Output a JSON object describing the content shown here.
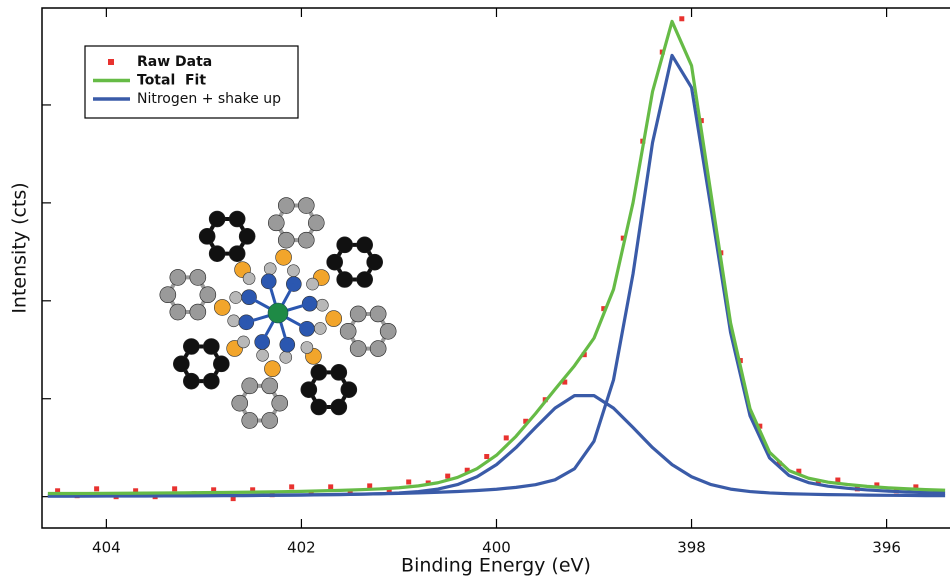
{
  "chart_data": {
    "type": "line",
    "x_label": "Binding Energy (eV)",
    "y_label": "Intensity (cts)",
    "xlim": [
      404.66,
      395.35
    ],
    "xticks": [
      404,
      402,
      400,
      398,
      396
    ],
    "ylim": [
      -0.32,
      4.99
    ],
    "yticks": [
      0,
      1,
      2,
      3,
      4
    ],
    "legend": "upper left",
    "x": [
      404.6,
      404.4,
      404.2,
      404.0,
      403.8,
      403.6,
      403.4,
      403.2,
      403.0,
      402.8,
      402.6,
      402.4,
      402.2,
      402.0,
      401.8,
      401.6,
      401.4,
      401.2,
      401.0,
      400.8,
      400.6,
      400.4,
      400.2,
      400.0,
      399.8,
      399.6,
      399.4,
      399.2,
      399.0,
      398.8,
      398.6,
      398.4,
      398.2,
      398.0,
      397.8,
      397.6,
      397.4,
      397.2,
      397.0,
      396.8,
      396.6,
      396.4,
      396.2,
      396.0,
      395.8,
      395.6,
      395.4
    ],
    "series": [
      {
        "name": "Raw Data",
        "type": "scatter",
        "color": "#e8322f",
        "x": [
          404.5,
          404.3,
          404.1,
          403.9,
          403.7,
          403.5,
          403.3,
          403.1,
          402.9,
          402.7,
          402.5,
          402.3,
          402.1,
          401.9,
          401.7,
          401.5,
          401.3,
          401.1,
          400.9,
          400.7,
          400.5,
          400.3,
          400.1,
          399.9,
          399.7,
          399.5,
          399.3,
          399.1,
          398.9,
          398.7,
          398.5,
          398.3,
          398.1,
          397.9,
          397.7,
          397.5,
          397.3,
          397.1,
          396.9,
          396.7,
          396.5,
          396.3,
          396.1,
          395.9,
          395.7,
          395.5
        ],
        "values": [
          0.06,
          0.01,
          0.08,
          0.0,
          0.06,
          0.0,
          0.08,
          0.03,
          0.07,
          -0.02,
          0.07,
          0.02,
          0.1,
          0.04,
          0.1,
          0.04,
          0.11,
          0.07,
          0.15,
          0.14,
          0.21,
          0.27,
          0.41,
          0.6,
          0.77,
          0.99,
          1.17,
          1.45,
          1.92,
          2.64,
          3.63,
          4.54,
          4.88,
          3.84,
          2.49,
          1.39,
          0.72,
          0.34,
          0.26,
          0.15,
          0.17,
          0.08,
          0.12,
          0.06,
          0.1,
          0.04
        ]
      },
      {
        "name": "Total  Fit",
        "type": "line",
        "color": "#66bb46",
        "values": [
          0.032,
          0.032,
          0.033,
          0.034,
          0.035,
          0.036,
          0.038,
          0.039,
          0.041,
          0.043,
          0.045,
          0.048,
          0.051,
          0.054,
          0.059,
          0.064,
          0.071,
          0.079,
          0.091,
          0.11,
          0.142,
          0.196,
          0.286,
          0.423,
          0.616,
          0.848,
          1.096,
          1.337,
          1.619,
          2.117,
          3.001,
          4.136,
          4.853,
          4.401,
          3.087,
          1.775,
          0.897,
          0.453,
          0.266,
          0.188,
          0.148,
          0.124,
          0.105,
          0.091,
          0.081,
          0.072,
          0.066
        ]
      },
      {
        "name": "Nitrogen + shake up",
        "type": "line",
        "color": "#3a5ba8",
        "values": [
          0.007,
          0.007,
          0.008,
          0.008,
          0.009,
          0.009,
          0.01,
          0.011,
          0.012,
          0.013,
          0.014,
          0.015,
          0.017,
          0.018,
          0.02,
          0.023,
          0.026,
          0.029,
          0.033,
          0.038,
          0.045,
          0.053,
          0.063,
          0.076,
          0.095,
          0.122,
          0.172,
          0.285,
          0.567,
          1.193,
          2.275,
          3.615,
          4.506,
          4.178,
          2.944,
          1.678,
          0.825,
          0.395,
          0.216,
          0.143,
          0.107,
          0.085,
          0.069,
          0.057,
          0.048,
          0.041,
          0.036
        ]
      },
      {
        "type": "line",
        "color": "#3a5ba8",
        "values": [
          0.005,
          0.005,
          0.005,
          0.006,
          0.006,
          0.007,
          0.008,
          0.008,
          0.009,
          0.01,
          0.011,
          0.013,
          0.014,
          0.016,
          0.019,
          0.021,
          0.025,
          0.03,
          0.038,
          0.052,
          0.077,
          0.123,
          0.203,
          0.327,
          0.501,
          0.706,
          0.904,
          1.032,
          1.032,
          0.904,
          0.706,
          0.501,
          0.327,
          0.203,
          0.123,
          0.077,
          0.052,
          0.038,
          0.03,
          0.025,
          0.021,
          0.019,
          0.016,
          0.014,
          0.013,
          0.011,
          0.01
        ]
      }
    ]
  }
}
